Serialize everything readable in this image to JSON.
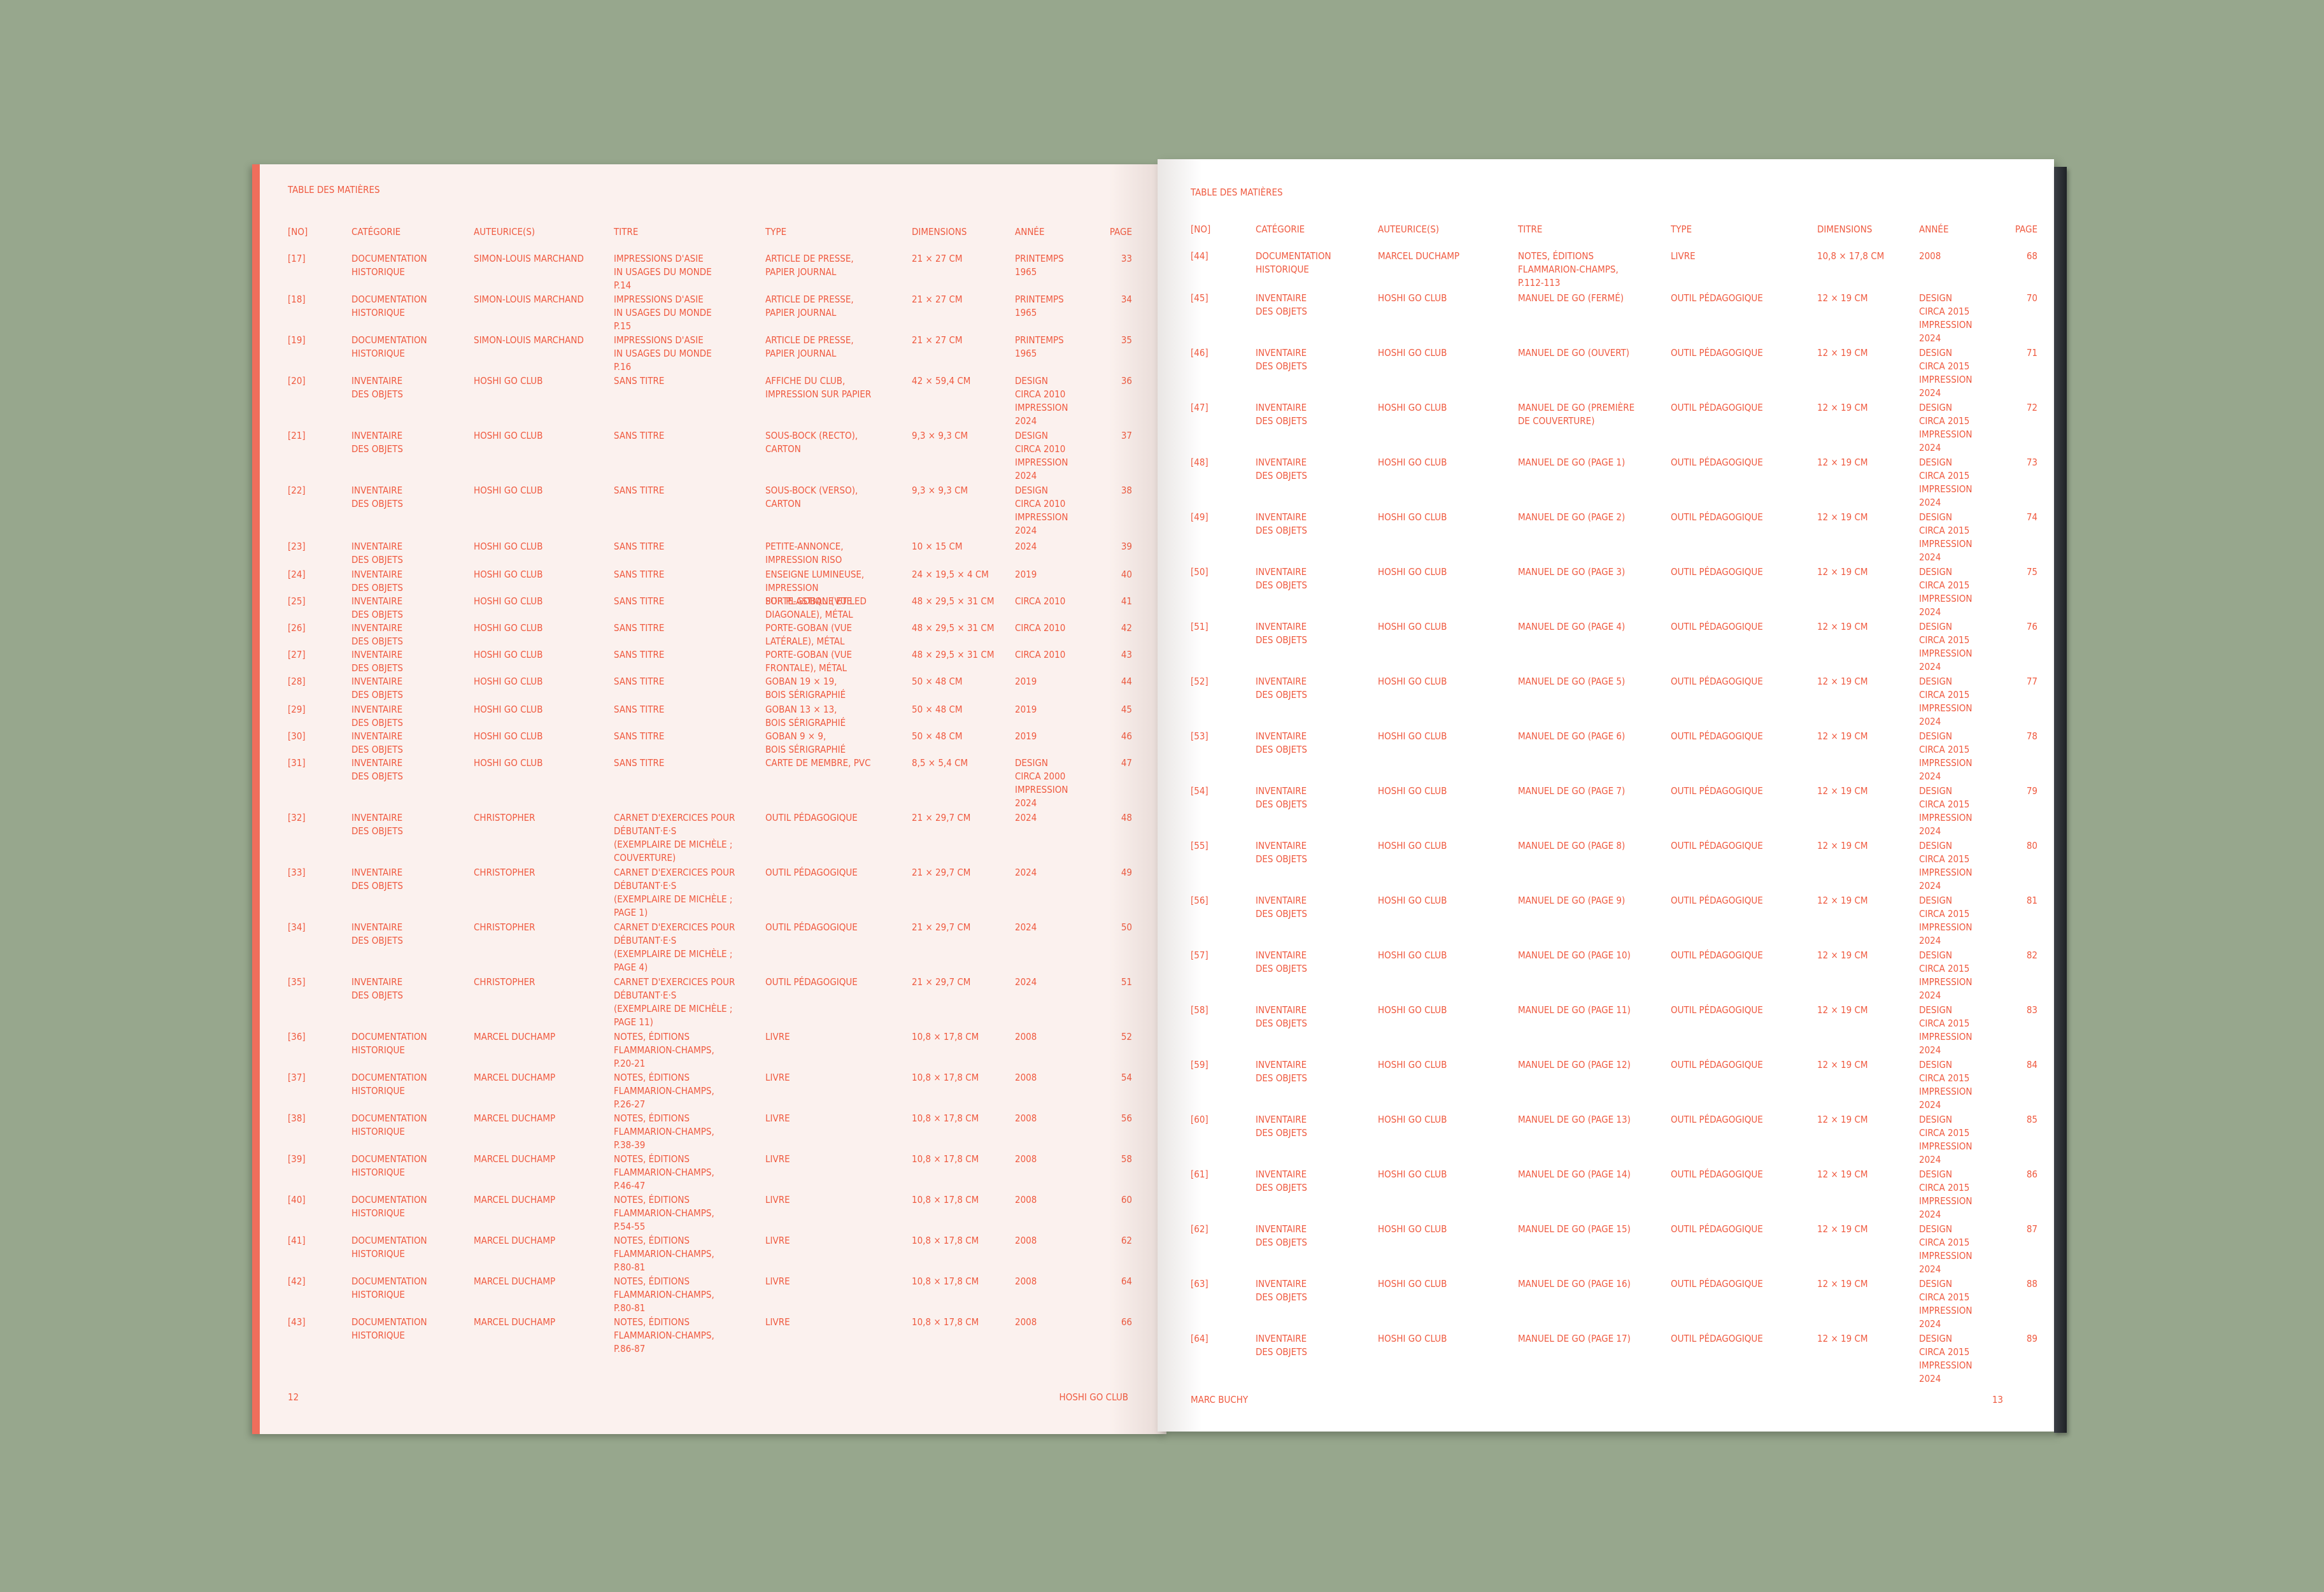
{
  "colors": {
    "background": "#97a78d",
    "left_page": "#fbf1ee",
    "right_page": "#ffffff",
    "ink": "#ef5a40",
    "page_edge": "#ef6e5c",
    "spine": "#2a2d31"
  },
  "left": {
    "header": "TABLE DES MATIÈRES",
    "columns": [
      "[No]",
      "CATÉGORIE",
      "AUTEURICE(S)",
      "TITRE",
      "TYPE",
      "DIMENSIONS",
      "ANNÉE",
      "PAGE"
    ],
    "rows": [
      [
        "[17]",
        "DOCUMENTATION\nHISTORIQUE",
        "SIMON-LOUIS MARCHAND",
        "IMPRESSIONS D'ASIE\nIN USAGES DU MONDE\nP.14",
        "ARTICLE DE PRESSE,\nPAPIER JOURNAL",
        "21 × 27 CM",
        "PRINTEMPS\n1965",
        "33"
      ],
      [
        "[18]",
        "DOCUMENTATION\nHISTORIQUE",
        "SIMON-LOUIS MARCHAND",
        "IMPRESSIONS D'ASIE\nIN USAGES DU MONDE\nP.15",
        "ARTICLE DE PRESSE,\nPAPIER JOURNAL",
        "21 × 27 CM",
        "PRINTEMPS\n1965",
        "34"
      ],
      [
        "[19]",
        "DOCUMENTATION\nHISTORIQUE",
        "SIMON-LOUIS MARCHAND",
        "IMPRESSIONS D'ASIE\nIN USAGES DU MONDE\nP.16",
        "ARTICLE DE PRESSE,\nPAPIER JOURNAL",
        "21 × 27 CM",
        "PRINTEMPS\n1965",
        "35"
      ],
      [
        "[20]",
        "INVENTAIRE\nDES OBJETS",
        "HOSHI GO CLUB",
        "SANS TITRE",
        "AFFICHE DU CLUB,\nIMPRESSION SUR PAPIER",
        "42 × 59,4 CM",
        "DESIGN\nCIRCA 2010\nIMPRESSION\n2024",
        "36"
      ],
      [
        "[21]",
        "INVENTAIRE\nDES OBJETS",
        "HOSHI GO CLUB",
        "SANS TITRE",
        "SOUS-BOCK (RECTO),\nCARTON",
        "9,3 × 9,3 CM",
        "DESIGN\nCIRCA 2010\nIMPRESSION\n2024",
        "37"
      ],
      [
        "[22]",
        "INVENTAIRE\nDES OBJETS",
        "HOSHI GO CLUB",
        "SANS TITRE",
        "SOUS-BOCK (VERSO),\nCARTON",
        "9,3 × 9,3 CM",
        "DESIGN\nCIRCA 2010\nIMPRESSION\n2024",
        "38"
      ],
      [
        "[23]",
        "INVENTAIRE\nDES OBJETS",
        "HOSHI GO CLUB",
        "SANS TITRE",
        "PETITE-ANNONCE,\nIMPRESSION RISO",
        "10 × 15 CM",
        "2024",
        "39"
      ],
      [
        "[24]",
        "INVENTAIRE\nDES OBJETS",
        "HOSHI GO CLUB",
        "SANS TITRE",
        "ENSEIGNE LUMINEUSE,\nIMPRESSION\nSUR PLASTIQUE ET LED",
        "24 × 19,5 × 4 CM",
        "2019",
        "40"
      ],
      [
        "[25]",
        "INVENTAIRE\nDES OBJETS",
        "HOSHI GO CLUB",
        "SANS TITRE",
        "PORTE-GOBAN (VUE\nDIAGONALE), MÉTAL",
        "48 × 29,5 × 31 CM",
        "CIRCA 2010",
        "41"
      ],
      [
        "[26]",
        "INVENTAIRE\nDES OBJETS",
        "HOSHI GO CLUB",
        "SANS TITRE",
        "PORTE-GOBAN (VUE\nLATÉRALE), MÉTAL",
        "48 × 29,5 × 31 CM",
        "CIRCA 2010",
        "42"
      ],
      [
        "[27]",
        "INVENTAIRE\nDES OBJETS",
        "HOSHI GO CLUB",
        "SANS TITRE",
        "PORTE-GOBAN (VUE\nFRONTALE), MÉTAL",
        "48 × 29,5 × 31 CM",
        "CIRCA 2010",
        "43"
      ],
      [
        "[28]",
        "INVENTAIRE\nDES OBJETS",
        "HOSHI GO CLUB",
        "SANS TITRE",
        "GOBAN 19 × 19,\nBOIS SÉRIGRAPHIÉ",
        "50 × 48 CM",
        "2019",
        "44"
      ],
      [
        "[29]",
        "INVENTAIRE\nDES OBJETS",
        "HOSHI GO CLUB",
        "SANS TITRE",
        "GOBAN 13 × 13,\nBOIS SÉRIGRAPHIÉ",
        "50 × 48 CM",
        "2019",
        "45"
      ],
      [
        "[30]",
        "INVENTAIRE\nDES OBJETS",
        "HOSHI GO CLUB",
        "SANS TITRE",
        "GOBAN 9 × 9,\nBOIS SÉRIGRAPHIÉ",
        "50 × 48 CM",
        "2019",
        "46"
      ],
      [
        "[31]",
        "INVENTAIRE\nDES OBJETS",
        "HOSHI GO CLUB",
        "SANS TITRE",
        "CARTE DE MEMBRE, PVC",
        "8,5 × 5,4 CM",
        "DESIGN\nCIRCA 2000\nIMPRESSION\n2024",
        "47"
      ],
      [
        "[32]",
        "INVENTAIRE\nDES OBJETS",
        "CHRISTOPHER",
        "CARNET D'EXERCICES POUR\nDÉBUTANT·E·S\n(EXEMPLAIRE DE MICHÈLE ;\nCOUVERTURE)",
        "OUTIL PÉDAGOGIQUE",
        "21 × 29,7 CM",
        "2024",
        "48"
      ],
      [
        "[33]",
        "INVENTAIRE\nDES OBJETS",
        "CHRISTOPHER",
        "CARNET D'EXERCICES POUR\nDÉBUTANT·E·S\n(EXEMPLAIRE DE MICHÈLE ;\nPAGE 1)",
        "OUTIL PÉDAGOGIQUE",
        "21 × 29,7 CM",
        "2024",
        "49"
      ],
      [
        "[34]",
        "INVENTAIRE\nDES OBJETS",
        "CHRISTOPHER",
        "CARNET D'EXERCICES POUR\nDÉBUTANT·E·S\n(EXEMPLAIRE DE MICHÈLE ;\nPAGE 4)",
        "OUTIL PÉDAGOGIQUE",
        "21 × 29,7 CM",
        "2024",
        "50"
      ],
      [
        "[35]",
        "INVENTAIRE\nDES OBJETS",
        "CHRISTOPHER",
        "CARNET D'EXERCICES POUR\nDÉBUTANT·E·S\n(EXEMPLAIRE DE MICHÈLE ;\nPAGE 11)",
        "OUTIL PÉDAGOGIQUE",
        "21 × 29,7 CM",
        "2024",
        "51"
      ],
      [
        "[36]",
        "DOCUMENTATION\nHISTORIQUE",
        "MARCEL DUCHAMP",
        "NOTES, ÉDITIONS\nFLAMMARION-CHAMPS,\nP.20-21",
        "LIVRE",
        "10,8 × 17,8 CM",
        "2008",
        "52"
      ],
      [
        "[37]",
        "DOCUMENTATION\nHISTORIQUE",
        "MARCEL DUCHAMP",
        "NOTES, ÉDITIONS\nFLAMMARION-CHAMPS,\nP.26-27",
        "LIVRE",
        "10,8 × 17,8 CM",
        "2008",
        "54"
      ],
      [
        "[38]",
        "DOCUMENTATION\nHISTORIQUE",
        "MARCEL DUCHAMP",
        "NOTES, ÉDITIONS\nFLAMMARION-CHAMPS,\nP.38-39",
        "LIVRE",
        "10,8 × 17,8 CM",
        "2008",
        "56"
      ],
      [
        "[39]",
        "DOCUMENTATION\nHISTORIQUE",
        "MARCEL DUCHAMP",
        "NOTES, ÉDITIONS\nFLAMMARION-CHAMPS,\nP.46-47",
        "LIVRE",
        "10,8 × 17,8 CM",
        "2008",
        "58"
      ],
      [
        "[40]",
        "DOCUMENTATION\nHISTORIQUE",
        "MARCEL DUCHAMP",
        "NOTES, ÉDITIONS\nFLAMMARION-CHAMPS,\nP.54-55",
        "LIVRE",
        "10,8 × 17,8 CM",
        "2008",
        "60"
      ],
      [
        "[41]",
        "DOCUMENTATION\nHISTORIQUE",
        "MARCEL DUCHAMP",
        "NOTES, ÉDITIONS\nFLAMMARION-CHAMPS,\nP.80-81",
        "LIVRE",
        "10,8 × 17,8 CM",
        "2008",
        "62"
      ],
      [
        "[42]",
        "DOCUMENTATION\nHISTORIQUE",
        "MARCEL DUCHAMP",
        "NOTES, ÉDITIONS\nFLAMMARION-CHAMPS,\nP.80-81",
        "LIVRE",
        "10,8 × 17,8 CM",
        "2008",
        "64"
      ],
      [
        "[43]",
        "DOCUMENTATION\nHISTORIQUE",
        "MARCEL DUCHAMP",
        "NOTES, ÉDITIONS\nFLAMMARION-CHAMPS,\nP.86-87",
        "LIVRE",
        "10,8 × 17,8 CM",
        "2008",
        "66"
      ]
    ],
    "footer_left": "12",
    "footer_right": "HOSHI GO CLUB"
  },
  "right": {
    "header": "TABLE DES MATIÈRES",
    "columns": [
      "[No]",
      "CATÉGORIE",
      "AUTEURICE(S)",
      "TITRE",
      "TYPE",
      "DIMENSIONS",
      "ANNÉE",
      "PAGE"
    ],
    "rows": [
      [
        "[44]",
        "DOCUMENTATION\nHISTORIQUE",
        "MARCEL DUCHAMP",
        "NOTES, ÉDITIONS\nFLAMMARION-CHAMPS,\nP.112-113",
        "LIVRE",
        "10,8 × 17,8 CM",
        "2008",
        "68"
      ],
      [
        "[45]",
        "INVENTAIRE\nDES OBJETS",
        "HOSHI GO CLUB",
        "MANUEL DE GO (FERMÉ)",
        "OUTIL PÉDAGOGIQUE",
        "12 × 19 CM",
        "DESIGN\nCIRCA 2015\nIMPRESSION\n2024",
        "70"
      ],
      [
        "[46]",
        "INVENTAIRE\nDES OBJETS",
        "HOSHI GO CLUB",
        "MANUEL DE GO (OUVERT)",
        "OUTIL PÉDAGOGIQUE",
        "12 × 19 CM",
        "DESIGN\nCIRCA 2015\nIMPRESSION\n2024",
        "71"
      ],
      [
        "[47]",
        "INVENTAIRE\nDES OBJETS",
        "HOSHI GO CLUB",
        "MANUEL DE GO (PREMIÈRE\nDE COUVERTURE)",
        "OUTIL PÉDAGOGIQUE",
        "12 × 19 CM",
        "DESIGN\nCIRCA 2015\nIMPRESSION\n2024",
        "72"
      ],
      [
        "[48]",
        "INVENTAIRE\nDES OBJETS",
        "HOSHI GO CLUB",
        "MANUEL DE GO (PAGE 1)",
        "OUTIL PÉDAGOGIQUE",
        "12 × 19 CM",
        "DESIGN\nCIRCA 2015\nIMPRESSION\n2024",
        "73"
      ],
      [
        "[49]",
        "INVENTAIRE\nDES OBJETS",
        "HOSHI GO CLUB",
        "MANUEL DE GO (PAGE 2)",
        "OUTIL PÉDAGOGIQUE",
        "12 × 19 CM",
        "DESIGN\nCIRCA 2015\nIMPRESSION\n2024",
        "74"
      ],
      [
        "[50]",
        "INVENTAIRE\nDES OBJETS",
        "HOSHI GO CLUB",
        "MANUEL DE GO (PAGE 3)",
        "OUTIL PÉDAGOGIQUE",
        "12 × 19 CM",
        "DESIGN\nCIRCA 2015\nIMPRESSION\n2024",
        "75"
      ],
      [
        "[51]",
        "INVENTAIRE\nDES OBJETS",
        "HOSHI GO CLUB",
        "MANUEL DE GO (PAGE 4)",
        "OUTIL PÉDAGOGIQUE",
        "12 × 19 CM",
        "DESIGN\nCIRCA 2015\nIMPRESSION\n2024",
        "76"
      ],
      [
        "[52]",
        "INVENTAIRE\nDES OBJETS",
        "HOSHI GO CLUB",
        "MANUEL DE GO (PAGE 5)",
        "OUTIL PÉDAGOGIQUE",
        "12 × 19 CM",
        "DESIGN\nCIRCA 2015\nIMPRESSION\n2024",
        "77"
      ],
      [
        "[53]",
        "INVENTAIRE\nDES OBJETS",
        "HOSHI GO CLUB",
        "MANUEL DE GO (PAGE 6)",
        "OUTIL PÉDAGOGIQUE",
        "12 × 19 CM",
        "DESIGN\nCIRCA 2015\nIMPRESSION\n2024",
        "78"
      ],
      [
        "[54]",
        "INVENTAIRE\nDES OBJETS",
        "HOSHI GO CLUB",
        "MANUEL DE GO (PAGE 7)",
        "OUTIL PÉDAGOGIQUE",
        "12 × 19 CM",
        "DESIGN\nCIRCA 2015\nIMPRESSION\n2024",
        "79"
      ],
      [
        "[55]",
        "INVENTAIRE\nDES OBJETS",
        "HOSHI GO CLUB",
        "MANUEL DE GO (PAGE 8)",
        "OUTIL PÉDAGOGIQUE",
        "12 × 19 CM",
        "DESIGN\nCIRCA 2015\nIMPRESSION\n2024",
        "80"
      ],
      [
        "[56]",
        "INVENTAIRE\nDES OBJETS",
        "HOSHI GO CLUB",
        "MANUEL DE GO (PAGE 9)",
        "OUTIL PÉDAGOGIQUE",
        "12 × 19 CM",
        "DESIGN\nCIRCA 2015\nIMPRESSION\n2024",
        "81"
      ],
      [
        "[57]",
        "INVENTAIRE\nDES OBJETS",
        "HOSHI GO CLUB",
        "MANUEL DE GO (PAGE 10)",
        "OUTIL PÉDAGOGIQUE",
        "12 × 19 CM",
        "DESIGN\nCIRCA 2015\nIMPRESSION\n2024",
        "82"
      ],
      [
        "[58]",
        "INVENTAIRE\nDES OBJETS",
        "HOSHI GO CLUB",
        "MANUEL DE GO (PAGE 11)",
        "OUTIL PÉDAGOGIQUE",
        "12 × 19 CM",
        "DESIGN\nCIRCA 2015\nIMPRESSION\n2024",
        "83"
      ],
      [
        "[59]",
        "INVENTAIRE\nDES OBJETS",
        "HOSHI GO CLUB",
        "MANUEL DE GO (PAGE 12)",
        "OUTIL PÉDAGOGIQUE",
        "12 × 19 CM",
        "DESIGN\nCIRCA 2015\nIMPRESSION\n2024",
        "84"
      ],
      [
        "[60]",
        "INVENTAIRE\nDES OBJETS",
        "HOSHI GO CLUB",
        "MANUEL DE GO (PAGE 13)",
        "OUTIL PÉDAGOGIQUE",
        "12 × 19 CM",
        "DESIGN\nCIRCA 2015\nIMPRESSION\n2024",
        "85"
      ],
      [
        "[61]",
        "INVENTAIRE\nDES OBJETS",
        "HOSHI GO CLUB",
        "MANUEL DE GO (PAGE 14)",
        "OUTIL PÉDAGOGIQUE",
        "12 × 19 CM",
        "DESIGN\nCIRCA 2015\nIMPRESSION\n2024",
        "86"
      ],
      [
        "[62]",
        "INVENTAIRE\nDES OBJETS",
        "HOSHI GO CLUB",
        "MANUEL DE GO (PAGE 15)",
        "OUTIL PÉDAGOGIQUE",
        "12 × 19 CM",
        "DESIGN\nCIRCA 2015\nIMPRESSION\n2024",
        "87"
      ],
      [
        "[63]",
        "INVENTAIRE\nDES OBJETS",
        "HOSHI GO CLUB",
        "MANUEL DE GO (PAGE 16)",
        "OUTIL PÉDAGOGIQUE",
        "12 × 19 CM",
        "DESIGN\nCIRCA 2015\nIMPRESSION\n2024",
        "88"
      ],
      [
        "[64]",
        "INVENTAIRE\nDES OBJETS",
        "HOSHI GO CLUB",
        "MANUEL DE GO (PAGE 17)",
        "OUTIL PÉDAGOGIQUE",
        "12 × 19 CM",
        "DESIGN\nCIRCA 2015\nIMPRESSION\n2024",
        "89"
      ]
    ],
    "footer_left": "MARC BUCHY",
    "footer_right": "13"
  }
}
